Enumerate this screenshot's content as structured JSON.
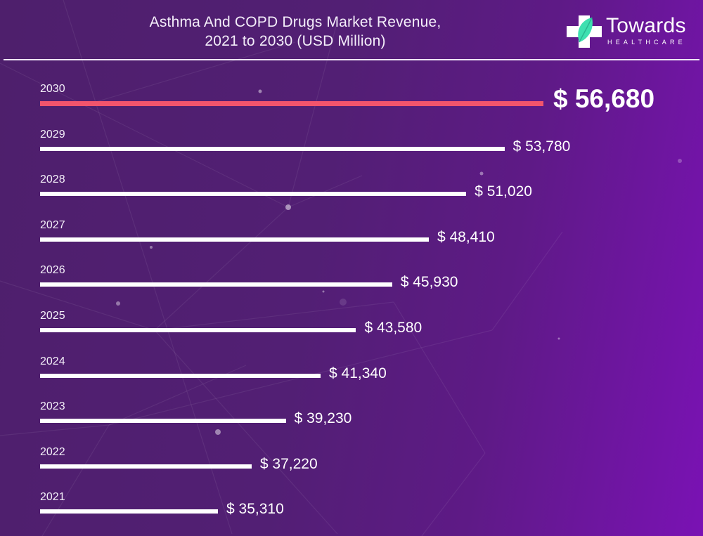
{
  "header": {
    "title_line1": "Asthma And COPD Drugs Market Revenue,",
    "title_line2": "2021 to 2030 (USD Million)"
  },
  "logo": {
    "brand": "Towards",
    "subtitle": "HEALTHCARE",
    "icon": "medical-cross-leaf-icon"
  },
  "colors": {
    "highlight_bar": "#f2546c",
    "bar": "#ffffff",
    "background_start": "#4e1f6c",
    "background_end": "#7a12b4",
    "logo_leaf": "#3ee0b0"
  },
  "chart_data": {
    "type": "bar",
    "orientation": "horizontal",
    "title": "Asthma And COPD Drugs Market Revenue, 2021 to 2030 (USD Million)",
    "xlabel": "",
    "ylabel": "",
    "currency_prefix": "$",
    "grid": false,
    "legend": "none",
    "highlight_category": "2030",
    "categories": [
      "2030",
      "2029",
      "2028",
      "2027",
      "2026",
      "2025",
      "2024",
      "2023",
      "2022",
      "2021"
    ],
    "values": [
      56680,
      53780,
      51020,
      48410,
      45930,
      43580,
      41340,
      39230,
      37220,
      35310
    ],
    "labels": [
      "$ 56,680",
      "$ 53,780",
      "$ 51,020",
      "$ 48,410",
      "$ 45,930",
      "$ 43,580",
      "$ 41,340",
      "$ 39,230",
      "$ 37,220",
      "$ 35,310"
    ]
  }
}
